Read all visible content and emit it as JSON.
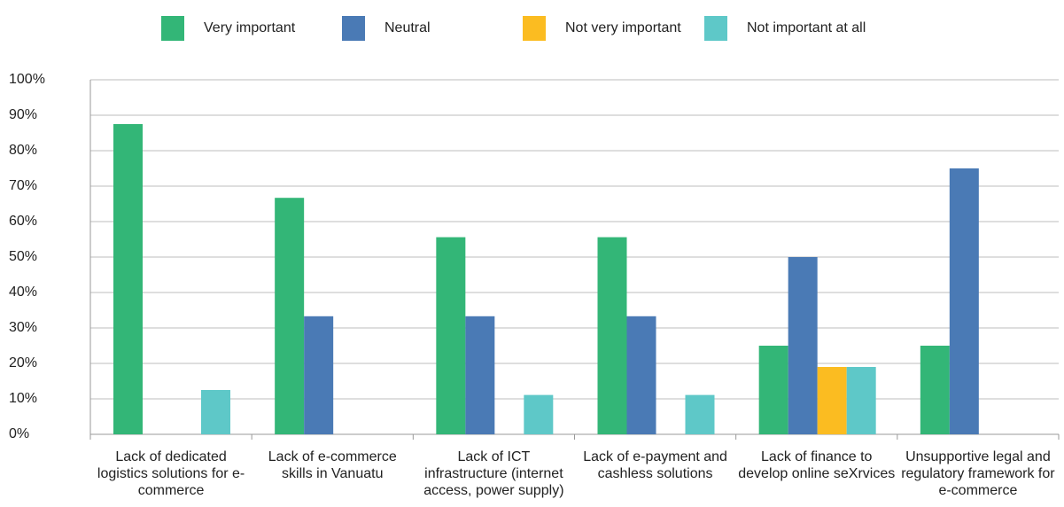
{
  "chart_data": {
    "type": "bar",
    "categories": [
      "Lack of dedicated logistics solutions for e-commerce",
      "Lack of e-commerce skills in Vanuatu",
      "Lack of ICT infrastructure (internet access, power supply)",
      "Lack of e-payment and cashless solutions",
      "Lack of finance to develop online seXrvices",
      "Unsupportive legal and regulatory framework for e-commerce"
    ],
    "series": [
      {
        "name": "Very important",
        "color": "#33b677",
        "values": [
          87.5,
          66.7,
          55.6,
          55.6,
          25,
          25
        ]
      },
      {
        "name": "Neutral",
        "color": "#4a7ab5",
        "values": [
          0,
          33.3,
          33.3,
          33.3,
          50,
          75
        ]
      },
      {
        "name": "Not very important",
        "color": "#fbbc21",
        "values": [
          0,
          0,
          0,
          0,
          19,
          0
        ]
      },
      {
        "name": "Not important at all",
        "color": "#5ec8c8",
        "values": [
          12.5,
          0,
          11.1,
          11.1,
          19,
          0
        ]
      }
    ],
    "ylim": [
      0,
      100
    ],
    "yticks": [
      {
        "value": 0,
        "label": "0%"
      },
      {
        "value": 10,
        "label": "10%"
      },
      {
        "value": 20,
        "label": "20%"
      },
      {
        "value": 30,
        "label": "30%"
      },
      {
        "value": 40,
        "label": "40%"
      },
      {
        "value": 50,
        "label": "50%"
      },
      {
        "value": 60,
        "label": "60%"
      },
      {
        "value": 70,
        "label": "70%"
      },
      {
        "value": 80,
        "label": "80%"
      },
      {
        "value": 90,
        "label": "90%"
      },
      {
        "value": 100,
        "label": "100%"
      }
    ],
    "grid": true,
    "legend": "top"
  }
}
